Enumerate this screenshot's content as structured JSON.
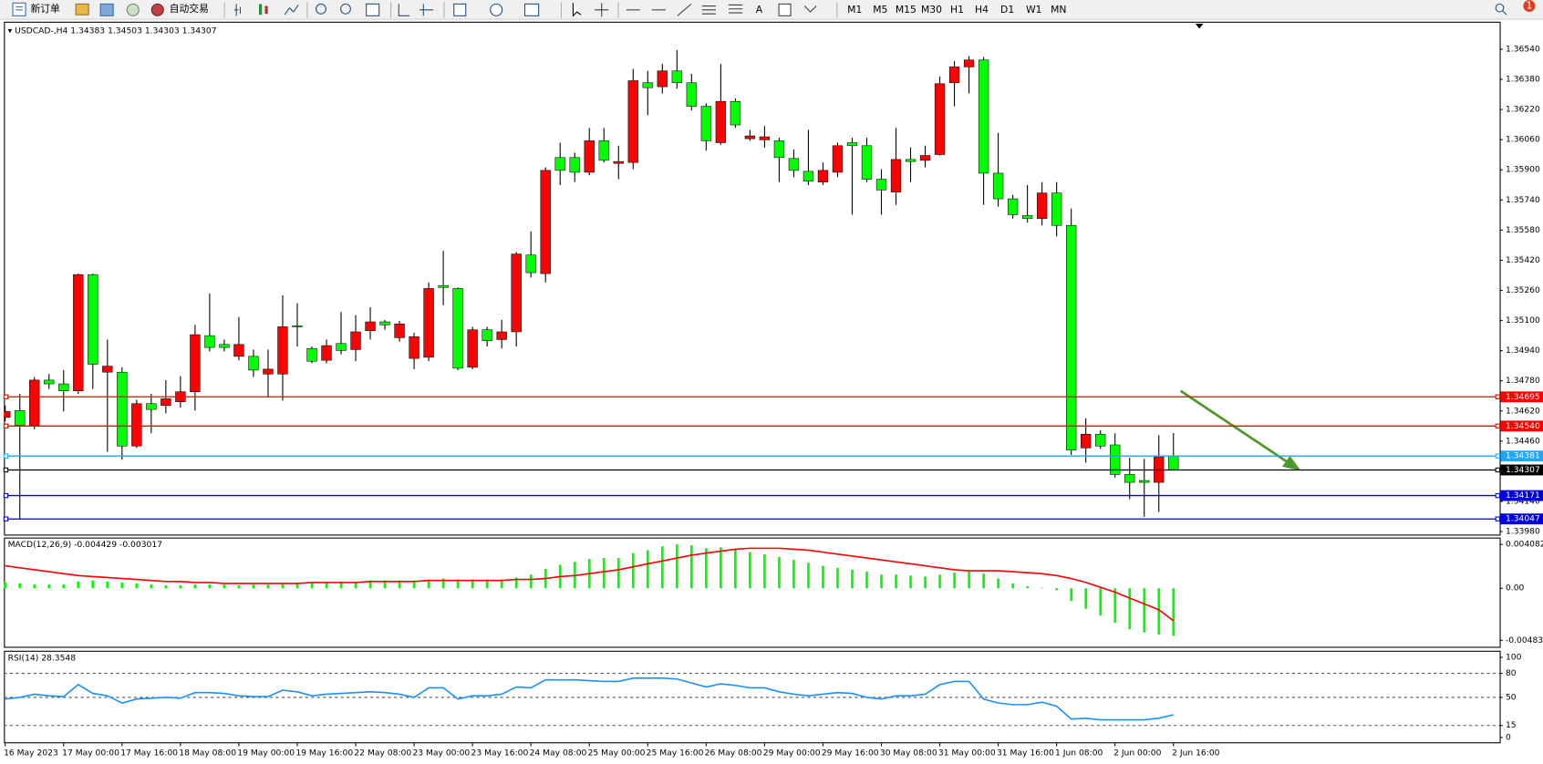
{
  "toolbar": {
    "new_order": "新订单",
    "auto_trading": "自动交易",
    "text_tool": "A",
    "timeframes": [
      "M1",
      "M5",
      "M15",
      "M30",
      "H1",
      "H4",
      "D1",
      "W1",
      "MN"
    ],
    "notifications": 1
  },
  "chart_data": [
    {
      "type": "candlestick",
      "title": "USDCAD-,H4",
      "categories": [
        "16 May 2023",
        null,
        null,
        null,
        "17 May 00:00",
        null,
        null,
        null,
        "17 May 16:00",
        null,
        null,
        null,
        "18 May 08:00",
        null,
        null,
        null,
        "19 May 00:00",
        null,
        null,
        null,
        "19 May 16:00",
        null,
        null,
        null,
        "22 May 08:00",
        null,
        null,
        null,
        "23 May 00:00",
        null,
        null,
        null,
        "23 May 16:00",
        null,
        null,
        null,
        "24 May 08:00",
        null,
        null,
        null,
        "25 May 00:00",
        null,
        null,
        null,
        "25 May 16:00",
        null,
        null,
        null,
        "26 May 08:00",
        null,
        null,
        null,
        "29 May 00:00",
        null,
        null,
        null,
        "29 May 16:00",
        null,
        null,
        null,
        "30 May 08:00",
        null,
        null,
        null,
        "31 May 00:00",
        null,
        null,
        null,
        "31 May 16:00",
        null,
        null,
        null,
        "1 Jun 08:00",
        null,
        null,
        null,
        "2 Jun 00:00",
        null,
        null,
        null,
        "2 Jun 16:00"
      ],
      "open": [
        1.34586,
        1.34622,
        1.34544,
        1.34784,
        1.34764,
        1.34727,
        1.35344,
        1.34826,
        1.34826,
        1.34434,
        1.34659,
        1.34649,
        1.34669,
        1.34722,
        1.3502,
        1.34973,
        1.3491,
        1.3491,
        1.34816,
        1.34816,
        1.35072,
        1.34952,
        1.34889,
        1.34978,
        1.34946,
        1.35046,
        1.35093,
        1.35009,
        1.34899,
        1.34905,
        1.35286,
        1.3527,
        1.34852,
        1.35051,
        1.34999,
        1.3504,
        1.35448,
        1.35349,
        1.35965,
        1.35965,
        1.35887,
        1.36054,
        1.35934,
        1.35939,
        1.36362,
        1.36341,
        1.36425,
        1.36362,
        1.36237,
        1.36044,
        1.36263,
        1.36065,
        1.36059,
        1.36054,
        1.3596,
        1.35892,
        1.35835,
        1.35887,
        1.36044,
        1.36028,
        1.3585,
        1.35782,
        1.35955,
        1.3595,
        1.35981,
        1.36362,
        1.36446,
        1.36483,
        1.35882,
        1.35746,
        1.35657,
        1.35641,
        1.35777,
        1.35605,
        1.34424,
        1.34497,
        1.3444,
        1.34283,
        1.34251,
        1.34241,
        1.34383
      ],
      "high": [
        1.34649,
        1.34711,
        1.348,
        1.34816,
        1.34837,
        1.35349,
        1.35349,
        1.34999,
        1.34852,
        1.3468,
        1.34711,
        1.34784,
        1.34805,
        1.35077,
        1.35244,
        1.34999,
        1.35119,
        1.34946,
        1.34946,
        1.35234,
        1.35192,
        1.34962,
        1.34999,
        1.35145,
        1.35129,
        1.35171,
        1.35103,
        1.35098,
        1.35035,
        1.35302,
        1.35469,
        1.35276,
        1.35067,
        1.35067,
        1.35103,
        1.35464,
        1.35573,
        1.35913,
        1.36044,
        1.35991,
        1.36122,
        1.36122,
        1.36028,
        1.36436,
        1.36425,
        1.36462,
        1.36535,
        1.36409,
        1.36253,
        1.36462,
        1.36279,
        1.36112,
        1.36132,
        1.3607,
        1.36007,
        1.36112,
        1.35939,
        1.36044,
        1.3607,
        1.3607,
        1.35903,
        1.36122,
        1.36018,
        1.36028,
        1.36394,
        1.36477,
        1.36503,
        1.36498,
        1.36096,
        1.35767,
        1.35819,
        1.35835,
        1.35835,
        1.35694,
        1.34581,
        1.34518,
        1.34502,
        1.34372,
        1.34366,
        1.34492,
        1.34503
      ],
      "low": [
        1.34565,
        1.34045,
        1.34523,
        1.34737,
        1.34617,
        1.34711,
        1.34737,
        1.34403,
        1.34361,
        1.34424,
        1.34502,
        1.34607,
        1.34638,
        1.34622,
        1.34936,
        1.34936,
        1.34889,
        1.348,
        1.34696,
        1.34675,
        1.34962,
        1.34873,
        1.34873,
        1.3492,
        1.34884,
        1.34999,
        1.35051,
        1.34988,
        1.34842,
        1.34884,
        1.35181,
        1.34837,
        1.34842,
        1.34962,
        1.34952,
        1.34962,
        1.35328,
        1.35302,
        1.35819,
        1.35835,
        1.35871,
        1.35939,
        1.3585,
        1.35903,
        1.3619,
        1.36305,
        1.36331,
        1.36216,
        1.36002,
        1.36033,
        1.36122,
        1.36054,
        1.36018,
        1.35835,
        1.35861,
        1.35819,
        1.35819,
        1.35861,
        1.35662,
        1.35835,
        1.35662,
        1.35714,
        1.35835,
        1.35913,
        1.35976,
        1.36237,
        1.36305,
        1.35714,
        1.35704,
        1.35641,
        1.3562,
        1.35605,
        1.35547,
        1.34387,
        1.34346,
        1.34419,
        1.34267,
        1.34152,
        1.34058,
        1.34084,
        1.34303
      ],
      "close": [
        1.34617,
        1.34544,
        1.34784,
        1.34764,
        1.34727,
        1.35344,
        1.34868,
        1.34858,
        1.34434,
        1.34659,
        1.34628,
        1.34685,
        1.34722,
        1.35025,
        1.34957,
        1.34957,
        1.34973,
        1.34837,
        1.34842,
        1.35067,
        1.35067,
        1.34884,
        1.34967,
        1.34941,
        1.3504,
        1.35093,
        1.35077,
        1.35082,
        1.35014,
        1.3527,
        1.35276,
        1.34847,
        1.35051,
        1.34993,
        1.3504,
        1.35453,
        1.35354,
        1.35897,
        1.35897,
        1.35887,
        1.36054,
        1.3595,
        1.35944,
        1.36373,
        1.36336,
        1.36425,
        1.36362,
        1.36237,
        1.36054,
        1.36263,
        1.36138,
        1.3608,
        1.36075,
        1.35965,
        1.35897,
        1.3584,
        1.35897,
        1.36028,
        1.36028,
        1.3585,
        1.35793,
        1.35955,
        1.35944,
        1.35976,
        1.36357,
        1.36446,
        1.36483,
        1.35882,
        1.35746,
        1.35662,
        1.35641,
        1.35777,
        1.35605,
        1.34413,
        1.34497,
        1.34434,
        1.34283,
        1.34241,
        1.34241,
        1.34377,
        1.34307
      ],
      "up_color": "#ff0000",
      "down_color": "#00ff00",
      "ylim": [
        1.33964,
        1.36686
      ],
      "yticks": [
        {
          "value": 1.3654,
          "label": "1.36540"
        },
        {
          "value": 1.3638,
          "label": "1.36380"
        },
        {
          "value": 1.3622,
          "label": "1.36220"
        },
        {
          "value": 1.3606,
          "label": "1.36060"
        },
        {
          "value": 1.359,
          "label": "1.35900"
        },
        {
          "value": 1.3574,
          "label": "1.35740"
        },
        {
          "value": 1.3558,
          "label": "1.35580"
        },
        {
          "value": 1.3542,
          "label": "1.35420"
        },
        {
          "value": 1.3526,
          "label": "1.35260"
        },
        {
          "value": 1.351,
          "label": "1.35100"
        },
        {
          "value": 1.3494,
          "label": "1.34940"
        },
        {
          "value": 1.3478,
          "label": "1.34780"
        },
        {
          "value": 1.3462,
          "label": "1.34620"
        },
        {
          "value": 1.3446,
          "label": "1.34460"
        },
        {
          "value": 1.3414,
          "label": "1.34140"
        },
        {
          "value": 1.3398,
          "label": "1.33980"
        }
      ],
      "grid": false,
      "hlines": [
        {
          "value": 1.34695,
          "label": "1.34695",
          "color": "#ff0000"
        },
        {
          "value": 1.3454,
          "label": "1.34540",
          "color": "#ff0000"
        },
        {
          "value": 1.34381,
          "label": "1.34381",
          "color": "#1ea7ff"
        },
        {
          "value": 1.34171,
          "label": "1.34171",
          "color": "#0000dd"
        },
        {
          "value": 1.34047,
          "label": "1.34047",
          "color": "#0000dd"
        }
      ],
      "current_price": {
        "value": 1.34307,
        "label": "1.34307",
        "color": "#000000"
      }
    },
    {
      "type": "macd",
      "title": "MACD(12,26,9)",
      "histogram": {
        "color": "#00ff00",
        "values": [
          0.00054,
          0.00045,
          0.00036,
          0.00036,
          0.00036,
          0.00063,
          0.00073,
          0.00063,
          0.00054,
          0.00045,
          0.00036,
          0.00027,
          0.00027,
          0.00036,
          0.00036,
          0.00036,
          0.00027,
          0.00036,
          0.00036,
          0.00045,
          0.00054,
          0.00054,
          0.00054,
          0.00063,
          0.00063,
          0.00073,
          0.00073,
          0.00073,
          0.00073,
          0.00082,
          0.00091,
          0.00082,
          0.00082,
          0.00082,
          0.00082,
          0.001,
          0.00127,
          0.00181,
          0.00218,
          0.00245,
          0.00272,
          0.00281,
          0.00281,
          0.00327,
          0.00354,
          0.0039,
          0.00408,
          0.00399,
          0.00372,
          0.00381,
          0.00363,
          0.00336,
          0.00317,
          0.0029,
          0.00263,
          0.00236,
          0.00209,
          0.0019,
          0.00172,
          0.00154,
          0.00127,
          0.00127,
          0.00118,
          0.00109,
          0.00127,
          0.00145,
          0.00154,
          0.00136,
          0.00091,
          0.00045,
          0.00018,
          5e-05,
          -0.00018,
          -0.00118,
          -0.0019,
          -0.00254,
          -0.0032,
          -0.0038,
          -0.0041,
          -0.0043,
          -0.004429
        ]
      },
      "signal": {
        "color": "#ff0000",
        "values": [
          0.00209,
          0.0019,
          0.00172,
          0.00154,
          0.00136,
          0.00118,
          0.00109,
          0.001,
          0.00091,
          0.00082,
          0.00073,
          0.00063,
          0.00063,
          0.00054,
          0.00054,
          0.00045,
          0.00045,
          0.00045,
          0.00045,
          0.00045,
          0.00045,
          0.00054,
          0.00054,
          0.00054,
          0.00054,
          0.00063,
          0.00063,
          0.00063,
          0.00063,
          0.00073,
          0.00073,
          0.00073,
          0.00073,
          0.00073,
          0.00073,
          0.00082,
          0.00082,
          0.00091,
          0.00109,
          0.00118,
          0.00136,
          0.00154,
          0.00172,
          0.002,
          0.00227,
          0.00254,
          0.00281,
          0.00308,
          0.00327,
          0.00345,
          0.00363,
          0.00372,
          0.00372,
          0.00372,
          0.00363,
          0.00354,
          0.00336,
          0.00317,
          0.00299,
          0.00281,
          0.00263,
          0.00245,
          0.00227,
          0.00209,
          0.0019,
          0.00172,
          0.00163,
          0.00163,
          0.00163,
          0.00154,
          0.00145,
          0.00136,
          0.00118,
          0.00091,
          0.00054,
          9e-05,
          -0.00036,
          -0.00091,
          -0.00145,
          -0.002,
          -0.003017
        ]
      },
      "ylim": [
        -0.005443,
        0.004626
      ],
      "yticks": [
        0.004082,
        {
          "value": 0,
          "label": "0.00"
        },
        -0.004834
      ]
    },
    {
      "type": "line",
      "title": "RSI(14)",
      "color": "#1e90ff",
      "values": [
        48,
        50,
        54,
        52,
        51,
        66,
        55,
        52,
        43,
        48,
        49,
        50,
        49,
        56,
        56,
        55,
        52,
        51,
        51,
        59,
        57,
        52,
        54,
        55,
        56,
        57,
        56,
        54,
        50,
        62,
        62,
        48,
        52,
        52,
        54,
        63,
        62,
        72,
        72,
        72,
        71,
        70,
        70,
        74,
        74,
        74,
        73,
        68,
        63,
        67,
        65,
        62,
        62,
        57,
        54,
        52,
        54,
        56,
        55,
        50,
        48,
        52,
        52,
        54,
        66,
        70,
        70,
        48,
        43,
        41,
        41,
        44,
        39,
        23,
        24,
        22,
        22,
        22,
        22,
        24,
        28.3548
      ],
      "ylim": [
        -6,
        107
      ],
      "yticks": [
        100,
        80,
        50,
        15,
        0
      ],
      "levels": [
        80,
        50,
        15
      ]
    }
  ]
}
